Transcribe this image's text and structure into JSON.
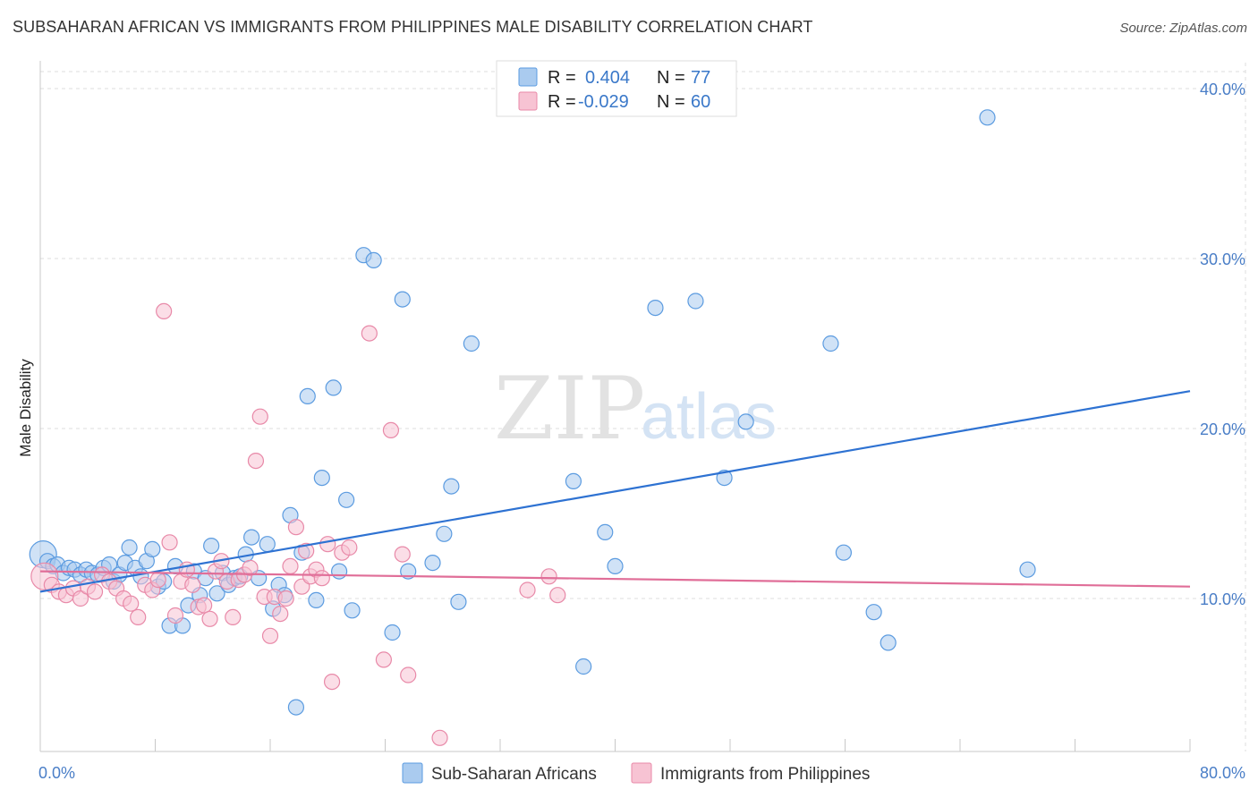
{
  "title": "SUBSAHARAN AFRICAN VS IMMIGRANTS FROM PHILIPPINES MALE DISABILITY CORRELATION CHART",
  "source": "Source: ZipAtlas.com",
  "watermark": {
    "zip": "ZIP",
    "atlas": "atlas"
  },
  "colors": {
    "blue": "#5b9be0",
    "blue_fill": "#aacbef",
    "blue_line": "#2e72d2",
    "pink": "#e889a8",
    "pink_fill": "#f7c3d3",
    "pink_line": "#e06e98",
    "axis_text": "#4a7ec7"
  },
  "legend": {
    "rows": [
      {
        "r_label": "R =",
        "r_value": "0.404",
        "n_label": "N =",
        "n_value": "77"
      },
      {
        "r_label": "R =",
        "r_value": "-0.029",
        "n_label": "N =",
        "n_value": "60"
      }
    ]
  },
  "chart_data": {
    "type": "scatter",
    "title": "SUBSAHARAN AFRICAN VS IMMIGRANTS FROM PHILIPPINES MALE DISABILITY CORRELATION CHART",
    "xlabel": "",
    "ylabel": "Male Disability",
    "xlim": [
      0,
      80
    ],
    "ylim": [
      1,
      41
    ],
    "x_tick_labels": [
      "0.0%",
      "80.0%"
    ],
    "y_ticks": [
      10,
      20,
      30,
      40
    ],
    "y_tick_labels": [
      "10.0%",
      "20.0%",
      "30.0%",
      "40.0%"
    ],
    "grid": true,
    "legend_position": "top-center",
    "series": [
      {
        "name": "Sub-Saharan Africans",
        "color": "#5b9be0",
        "trend": {
          "x": [
            0,
            80
          ],
          "y": [
            10.4,
            22.2
          ]
        },
        "points": [
          [
            0.2,
            12.6
          ],
          [
            0.5,
            12.2
          ],
          [
            0.9,
            11.9
          ],
          [
            1.2,
            12.0
          ],
          [
            1.6,
            11.5
          ],
          [
            2.0,
            11.8
          ],
          [
            2.4,
            11.7
          ],
          [
            2.8,
            11.4
          ],
          [
            3.2,
            11.7
          ],
          [
            3.6,
            11.5
          ],
          [
            4.0,
            11.4
          ],
          [
            4.4,
            11.8
          ],
          [
            4.8,
            12.0
          ],
          [
            5.1,
            11.0
          ],
          [
            5.5,
            11.4
          ],
          [
            5.9,
            12.1
          ],
          [
            6.2,
            13.0
          ],
          [
            6.6,
            11.8
          ],
          [
            7.0,
            11.3
          ],
          [
            7.4,
            12.2
          ],
          [
            7.8,
            12.9
          ],
          [
            8.2,
            10.7
          ],
          [
            8.6,
            11.0
          ],
          [
            9.0,
            8.4
          ],
          [
            9.4,
            11.9
          ],
          [
            9.9,
            8.4
          ],
          [
            10.3,
            9.6
          ],
          [
            10.7,
            11.6
          ],
          [
            11.1,
            10.2
          ],
          [
            11.5,
            11.2
          ],
          [
            11.9,
            13.1
          ],
          [
            12.3,
            10.3
          ],
          [
            12.7,
            11.5
          ],
          [
            13.1,
            10.8
          ],
          [
            13.5,
            11.2
          ],
          [
            13.9,
            11.3
          ],
          [
            14.3,
            12.6
          ],
          [
            14.7,
            13.6
          ],
          [
            15.2,
            11.2
          ],
          [
            15.8,
            13.2
          ],
          [
            16.2,
            9.4
          ],
          [
            16.6,
            10.8
          ],
          [
            17.0,
            10.2
          ],
          [
            17.4,
            14.9
          ],
          [
            17.8,
            3.6
          ],
          [
            18.2,
            12.7
          ],
          [
            18.6,
            21.9
          ],
          [
            19.2,
            9.9
          ],
          [
            19.6,
            17.1
          ],
          [
            20.4,
            22.4
          ],
          [
            20.8,
            11.6
          ],
          [
            21.3,
            15.8
          ],
          [
            21.7,
            9.3
          ],
          [
            22.5,
            30.2
          ],
          [
            23.2,
            29.9
          ],
          [
            24.5,
            8.0
          ],
          [
            25.2,
            27.6
          ],
          [
            25.6,
            11.6
          ],
          [
            27.3,
            12.1
          ],
          [
            28.1,
            13.8
          ],
          [
            28.6,
            16.6
          ],
          [
            29.1,
            9.8
          ],
          [
            30.0,
            25.0
          ],
          [
            37.1,
            16.9
          ],
          [
            37.8,
            6.0
          ],
          [
            39.3,
            13.9
          ],
          [
            40.0,
            11.9
          ],
          [
            42.8,
            27.1
          ],
          [
            45.6,
            27.5
          ],
          [
            47.6,
            17.1
          ],
          [
            49.1,
            20.4
          ],
          [
            55.0,
            25.0
          ],
          [
            55.9,
            12.7
          ],
          [
            58.0,
            9.2
          ],
          [
            59.0,
            7.4
          ],
          [
            65.9,
            38.3
          ],
          [
            68.7,
            11.7
          ]
        ]
      },
      {
        "name": "Immigrants from Philippines",
        "color": "#e889a8",
        "trend": {
          "x": [
            0,
            80
          ],
          "y": [
            11.6,
            10.7
          ]
        },
        "points": [
          [
            0.3,
            11.3
          ],
          [
            0.8,
            10.8
          ],
          [
            1.3,
            10.4
          ],
          [
            1.8,
            10.2
          ],
          [
            2.3,
            10.6
          ],
          [
            2.8,
            10.0
          ],
          [
            3.3,
            10.7
          ],
          [
            3.8,
            10.4
          ],
          [
            4.3,
            11.4
          ],
          [
            4.8,
            11.0
          ],
          [
            5.3,
            10.6
          ],
          [
            5.8,
            10.0
          ],
          [
            6.3,
            9.7
          ],
          [
            6.8,
            8.9
          ],
          [
            7.3,
            10.8
          ],
          [
            7.8,
            10.5
          ],
          [
            8.2,
            11.1
          ],
          [
            8.6,
            26.9
          ],
          [
            9.0,
            13.3
          ],
          [
            9.4,
            9.0
          ],
          [
            9.8,
            11.0
          ],
          [
            10.2,
            11.7
          ],
          [
            10.6,
            10.8
          ],
          [
            11.0,
            9.5
          ],
          [
            11.4,
            9.6
          ],
          [
            11.8,
            8.8
          ],
          [
            12.2,
            11.6
          ],
          [
            12.6,
            12.2
          ],
          [
            13.0,
            11.0
          ],
          [
            13.4,
            8.9
          ],
          [
            13.8,
            11.1
          ],
          [
            14.2,
            11.4
          ],
          [
            14.6,
            11.8
          ],
          [
            15.0,
            18.1
          ],
          [
            15.3,
            20.7
          ],
          [
            15.6,
            10.1
          ],
          [
            16.0,
            7.8
          ],
          [
            16.3,
            10.1
          ],
          [
            16.7,
            9.1
          ],
          [
            17.1,
            10.0
          ],
          [
            17.4,
            11.9
          ],
          [
            17.8,
            14.2
          ],
          [
            18.2,
            10.7
          ],
          [
            18.5,
            12.8
          ],
          [
            18.8,
            11.3
          ],
          [
            19.2,
            11.7
          ],
          [
            19.6,
            11.2
          ],
          [
            20.0,
            13.2
          ],
          [
            20.3,
            5.1
          ],
          [
            21.0,
            12.7
          ],
          [
            21.5,
            13.0
          ],
          [
            22.9,
            25.6
          ],
          [
            23.9,
            6.4
          ],
          [
            24.4,
            19.9
          ],
          [
            25.2,
            12.6
          ],
          [
            25.6,
            5.5
          ],
          [
            27.8,
            1.8
          ],
          [
            33.9,
            10.5
          ],
          [
            35.4,
            11.3
          ],
          [
            36.0,
            10.2
          ]
        ]
      }
    ]
  }
}
